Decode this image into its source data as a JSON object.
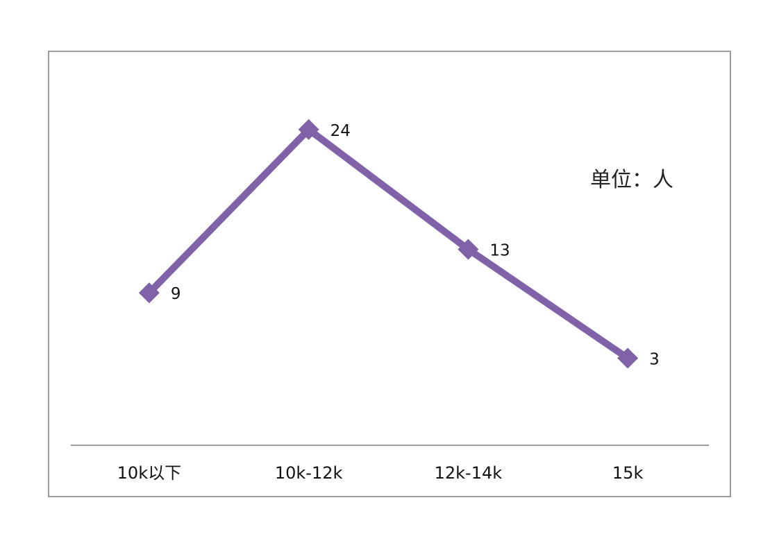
{
  "chart_data": {
    "type": "line",
    "categories": [
      "10k以下",
      "10k-12k",
      "12k-14k",
      "15k"
    ],
    "series": [
      {
        "values": [
          9,
          24,
          13,
          3
        ]
      }
    ],
    "data_labels": [
      "9",
      "24",
      "13",
      "3"
    ],
    "unit_label": "单位：人",
    "ylim": [
      -5,
      28
    ],
    "grid": false,
    "legend": "none",
    "colors": {
      "line": "#7f62a8",
      "marker": "#7f62a8",
      "axis": "#9a9a9a",
      "frame": "#9b9b9b"
    }
  }
}
